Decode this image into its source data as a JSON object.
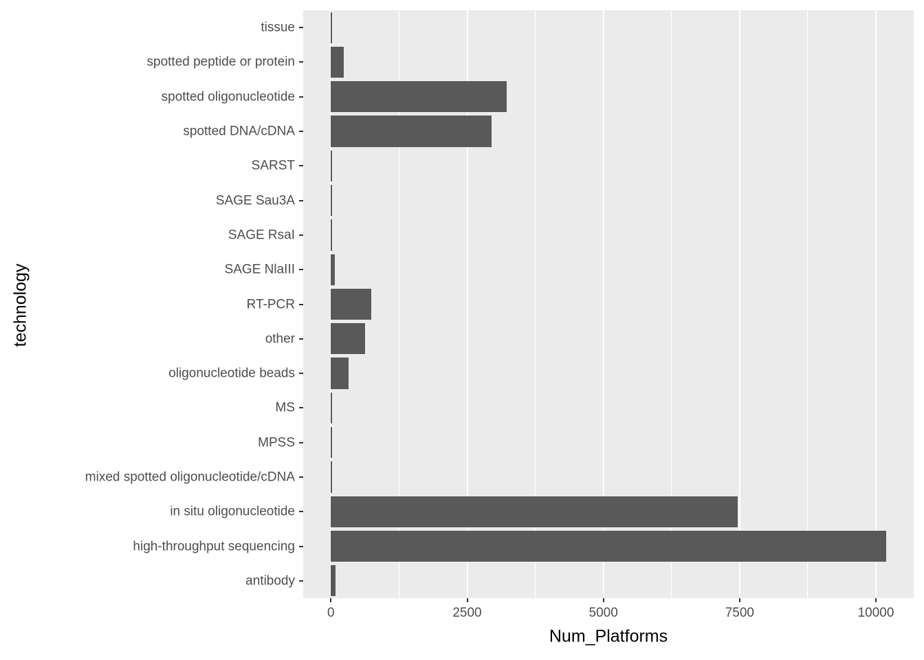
{
  "chart_data": {
    "type": "bar",
    "orientation": "horizontal",
    "title": "",
    "xlabel": "Num_Platforms",
    "ylabel": "technology",
    "categories": [
      "tissue",
      "spotted peptide or protein",
      "spotted oligonucleotide",
      "spotted DNA/cDNA",
      "SARST",
      "SAGE Sau3A",
      "SAGE RsaI",
      "SAGE NlaIII",
      "RT-PCR",
      "other",
      "oligonucleotide beads",
      "MS",
      "MPSS",
      "mixed spotted oligonucleotide/cDNA",
      "in situ oligonucleotide",
      "high-throughput sequencing",
      "antibody"
    ],
    "values": [
      20,
      240,
      3230,
      2950,
      8,
      6,
      6,
      75,
      735,
      625,
      320,
      15,
      12,
      12,
      7460,
      10190,
      88
    ],
    "x_ticks": [
      0,
      2500,
      5000,
      7500,
      10000
    ],
    "x_minor_ticks": [
      1250,
      3750,
      6250,
      8750
    ],
    "x_tick_labels": [
      "0",
      "2500",
      "5000",
      "7500",
      "10000"
    ],
    "axis_domain": [
      -509,
      10694
    ],
    "grid": "on",
    "legend": "none",
    "style": {
      "bar_fill": "#595959",
      "panel_background": "#EBEBEB",
      "gridline_color": "#FFFFFF",
      "tick_label_color": "#4D4D4D",
      "axis_title_color": "#000000",
      "tick_mark_color": "#333333"
    }
  }
}
